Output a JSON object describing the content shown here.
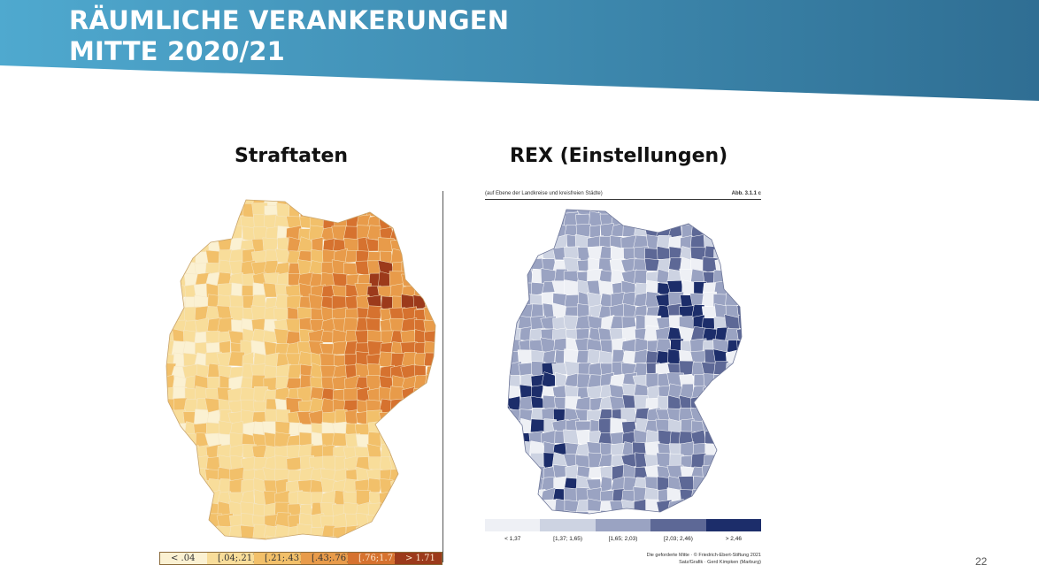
{
  "slide": {
    "title_lines": [
      "RÄUMLICHE VERANKERUNGEN",
      "MITTE 2020/21"
    ],
    "page_number": "22",
    "banner_colors": [
      "#4fa9cf",
      "#2f6e93"
    ]
  },
  "left_panel": {
    "heading": "Straftaten",
    "legend": [
      {
        "label": "< .04",
        "color": "#fbf1d2"
      },
      {
        "label": "[.04;.21]",
        "color": "#f8dd9a"
      },
      {
        "label": "[.21;.43]",
        "color": "#f2c06a"
      },
      {
        "label": "[.43;.76]",
        "color": "#e89b4a"
      },
      {
        "label": "[.76;1.71]",
        "color": "#d6722f"
      },
      {
        "label": "> 1.71",
        "color": "#9c3a1b"
      }
    ],
    "map_colors": [
      "#fbf1d2",
      "#f8dd9a",
      "#f2c06a",
      "#e89b4a",
      "#d6722f",
      "#9c3a1b"
    ]
  },
  "right_panel": {
    "heading": "REX (Einstellungen)",
    "subtitle": "(auf Ebene der Landkreise und kreisfreien Städte)",
    "figure_label": "Abb. 3.1.1 c",
    "legend": [
      {
        "label": "< 1,37",
        "color": "#eef0f5"
      },
      {
        "label": "[1,37; 1,65)",
        "color": "#cdd3e2"
      },
      {
        "label": "[1,65; 2,03)",
        "color": "#9aa3c2"
      },
      {
        "label": "[2,03; 2,46)",
        "color": "#5d6896"
      },
      {
        "label": "> 2,46",
        "color": "#1c2d6a"
      }
    ],
    "credit_lines": [
      "Die geforderte Mitte · © Friedrich-Ebert-Stiftung 2021",
      "Satz/Grafik · Gerd Kimpken (Marburg)"
    ],
    "map_colors": [
      "#eef0f5",
      "#cdd3e2",
      "#9aa3c2",
      "#5d6896",
      "#1c2d6a"
    ]
  }
}
